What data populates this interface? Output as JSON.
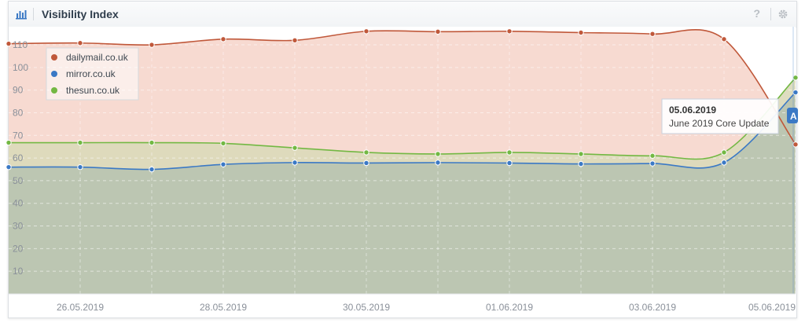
{
  "header": {
    "title": "Visibility Index",
    "help_label": "?",
    "icons": {
      "chart": "bar-chart-icon",
      "settings": "gear-icon"
    }
  },
  "annotation": {
    "date": "05.06.2019",
    "label": "June 2019 Core Update",
    "marker_label": "A",
    "marker_color": "#3b79c5"
  },
  "chart_data": {
    "type": "area",
    "x": [
      "25.05.2019",
      "26.05.2019",
      "27.05.2019",
      "28.05.2019",
      "29.05.2019",
      "30.05.2019",
      "31.05.2019",
      "01.06.2019",
      "02.06.2019",
      "03.06.2019",
      "04.06.2019",
      "05.06.2019"
    ],
    "x_tick_labels": [
      "26.05.2019",
      "28.05.2019",
      "30.05.2019",
      "01.06.2019",
      "03.06.2019",
      "05.06.2019"
    ],
    "y_ticks": [
      10,
      20,
      30,
      40,
      50,
      60,
      70,
      80,
      90,
      100,
      110
    ],
    "ylim": [
      0,
      118
    ],
    "grid": true,
    "legend_position": "top-left",
    "series": [
      {
        "name": "dailymail.co.uk",
        "color": "#c0583a",
        "fill": "#f6d6cc",
        "values": [
          110.5,
          110.8,
          110,
          112.5,
          112.0,
          116.0,
          115.8,
          116.0,
          115.4,
          114.8,
          112.5,
          66.0
        ]
      },
      {
        "name": "mirror.co.uk",
        "color": "#3b79c5",
        "fill": "#b8c3b0",
        "values": [
          56.0,
          56.0,
          55.0,
          57.2,
          58.0,
          57.8,
          58.0,
          57.8,
          57.4,
          57.6,
          58.0,
          89.0
        ]
      },
      {
        "name": "thesun.co.uk",
        "color": "#73b843",
        "fill": "#dad9b9",
        "values": [
          66.8,
          66.8,
          66.8,
          66.5,
          64.5,
          62.5,
          61.8,
          62.5,
          61.8,
          61.0,
          62.5,
          95.5
        ]
      }
    ]
  }
}
